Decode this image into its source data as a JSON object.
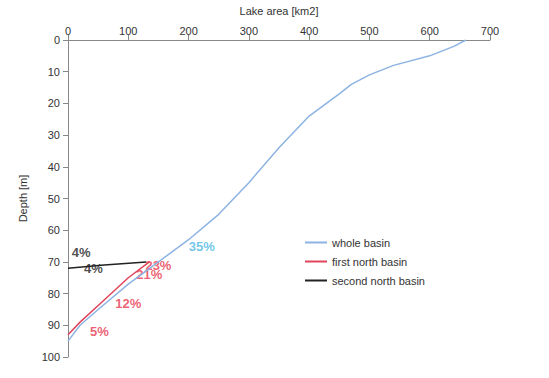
{
  "chart_data": {
    "type": "line",
    "x_label": "Lake area [km2]",
    "y_label": "Depth [m]",
    "xlim": [
      0,
      700
    ],
    "xticks": [
      0,
      100,
      200,
      300,
      400,
      500,
      600,
      700
    ],
    "ylim": [
      0,
      100
    ],
    "yticks": [
      0,
      10,
      20,
      30,
      40,
      50,
      60,
      70,
      80,
      90,
      100
    ],
    "grid": false,
    "legend": "right",
    "series": [
      {
        "name": "whole basin",
        "color": "#8db3e2",
        "x": [
          660,
          640,
          600,
          540,
          500,
          470,
          450,
          400,
          350,
          300,
          250,
          200,
          150,
          100,
          50,
          20,
          0
        ],
        "values": [
          0,
          2,
          5,
          8,
          11,
          14,
          17,
          24,
          34,
          45,
          55,
          63,
          70,
          77,
          85,
          90,
          95
        ]
      },
      {
        "name": "first north basin",
        "color": "#e0445a",
        "x": [
          135,
          100,
          60,
          20,
          0
        ],
        "values": [
          70,
          75,
          82,
          89,
          93
        ]
      },
      {
        "name": "second north basin",
        "color": "#222222",
        "x": [
          0,
          60,
          130
        ],
        "values": [
          72,
          71,
          70
        ]
      }
    ],
    "annotations": [
      {
        "text": "4%",
        "x": 22,
        "y": 67,
        "color": "#222222"
      },
      {
        "text": "4%",
        "x": 42,
        "y": 72,
        "color": "#222222"
      },
      {
        "text": "23%",
        "x": 150,
        "y": 71,
        "color": "#e8384f"
      },
      {
        "text": "35%",
        "x": 222,
        "y": 65,
        "color": "#4fb8e6"
      },
      {
        "text": "21%",
        "x": 135,
        "y": 74,
        "color": "#e8384f"
      },
      {
        "text": "12%",
        "x": 100,
        "y": 83,
        "color": "#e8384f"
      },
      {
        "text": "5%",
        "x": 52,
        "y": 92,
        "color": "#e8384f"
      }
    ]
  }
}
